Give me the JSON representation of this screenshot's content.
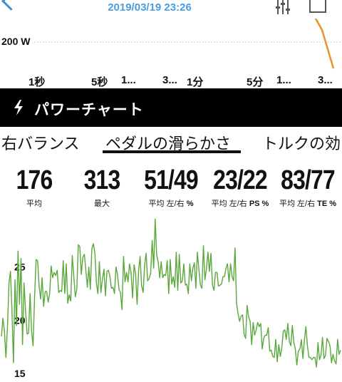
{
  "header": {
    "date": "2019/03/19 23:26",
    "back_icon": "back-chevron-icon",
    "filter_icon": "filter-sliders-icon",
    "export_icon": "export-icon"
  },
  "mini_chart": {
    "y_label": "200 W",
    "x_labels": [
      "1秒",
      "5秒",
      "1...",
      "3...",
      "1分",
      "5分",
      "1...",
      "3..."
    ],
    "line_color": "#e8932a"
  },
  "section": {
    "title": "パワーチャート",
    "icon": "lightning-bolt-icon"
  },
  "tabs": [
    {
      "label": "右バランス",
      "active": false
    },
    {
      "label": "ペダルの滑らかさ",
      "active": true
    },
    {
      "label": "トルクの効",
      "active": false
    }
  ],
  "stats": [
    {
      "value": "176",
      "label_parts": [
        {
          "t": "平均",
          "b": false
        }
      ]
    },
    {
      "value": "313",
      "label_parts": [
        {
          "t": "最大",
          "b": false
        }
      ]
    },
    {
      "value": "51/49",
      "label_parts": [
        {
          "t": "平均 左/右",
          "b": false
        },
        {
          "t": " %",
          "b": true
        }
      ]
    },
    {
      "value": "23/22",
      "label_parts": [
        {
          "t": "平均 左/右 ",
          "b": false
        },
        {
          "t": "PS %",
          "b": true
        }
      ]
    },
    {
      "value": "83/77",
      "label_parts": [
        {
          "t": "平均 左/右 ",
          "b": false
        },
        {
          "t": "TE %",
          "b": true
        }
      ]
    }
  ],
  "chart_data": {
    "type": "line",
    "title": "",
    "xlabel": "",
    "ylabel": "",
    "yticks": [
      15,
      20,
      25
    ],
    "ylim": [
      14.2,
      30
    ],
    "grid": false,
    "series": [
      {
        "color": "#5aa83c",
        "values": [
          18.5,
          20.2,
          19,
          16.5,
          19.4,
          23.5,
          24.6,
          20.8,
          16,
          23.8,
          19.5,
          26.5,
          21.5,
          25.8,
          17.7,
          23.5,
          21,
          18.7,
          18.8,
          22.5,
          19,
          17.6,
          22.1,
          25.7,
          25.6,
          23.2,
          22,
          24,
          21.3,
          22.7,
          22.7,
          21.7,
          22.5,
          25.1,
          24,
          24.5,
          24.2,
          24.7,
          22.6,
          22.8,
          22.7,
          25.6,
          22.5,
          25.3,
          21.6,
          22.4,
          21.8,
          26.1,
          24.2,
          22.2,
          22.9,
          27.1,
          26.9,
          24.3,
          25.9,
          26.2,
          24.7,
          23.1,
          25,
          22.9,
          26.7,
          27.2,
          26.3,
          23.5,
          22.5,
          25.5,
          22.6,
          23.8,
          24.8,
          22.3,
          24.6,
          24.7,
          24.1,
          23,
          23.1,
          22.5,
          25,
          24.3,
          22.9,
          22.6,
          21,
          26,
          23.6,
          24.5,
          23.6,
          25.3,
          24.5,
          22.1,
          25.2,
          24.4,
          21.5,
          24.6,
          26,
          23.3,
          22.6,
          25.2,
          26.3,
          23.7,
          23.9,
          24.4,
          27.5,
          24.9,
          29.5,
          26.1,
          25.5,
          24,
          25.5,
          24,
          24.3,
          24.2,
          25.6,
          22.5,
          25.7,
          23.4,
          24.1,
          23.1,
          26.4,
          22.8,
          26.2,
          23.5,
          23.7,
          25.3,
          23.3,
          23.4,
          22.5,
          25.3,
          23.7,
          24.9,
          25.4,
          23,
          26.4,
          24.8,
          23.3,
          23,
          27,
          23.8,
          24.8,
          26.4,
          24.6,
          26.3,
          23.3,
          22.8,
          24.5,
          24.5,
          23.2,
          23.3,
          23.4,
          24.1,
          24.1,
          24.9,
          25.3,
          23.6,
          25.3,
          24.1,
          23.7,
          26.8,
          21.6,
          20.6,
          19.9,
          20.4,
          20.5,
          18.7,
          18.3,
          21.4,
          20.3,
          19.9,
          17.7,
          19.8,
          18.6,
          19.1,
          19.8,
          19.4,
          19.7,
          17.3,
          18.3,
          18.6,
          18.6,
          19.3,
          17.1,
          17.2,
          16.6,
          16.5,
          18.2,
          16.1,
          17.7,
          16.6,
          17.4,
          19,
          19.1,
          18.2,
          19.7,
          18,
          17.6,
          19.5,
          17.9,
          17.3,
          15.8,
          17.1,
          17.3,
          18.2,
          16.4,
          18.1,
          19.4,
          17.6,
          16.5,
          16.5,
          16.3,
          16.5,
          16.5,
          15.6,
          17.9,
          16.3,
          16.7,
          18.4,
          16.4,
          16.7,
          18.3,
          18,
          17.6,
          16,
          16.8,
          16.2,
          15.9,
          18.2,
          16.8,
          17.2
        ]
      }
    ]
  }
}
